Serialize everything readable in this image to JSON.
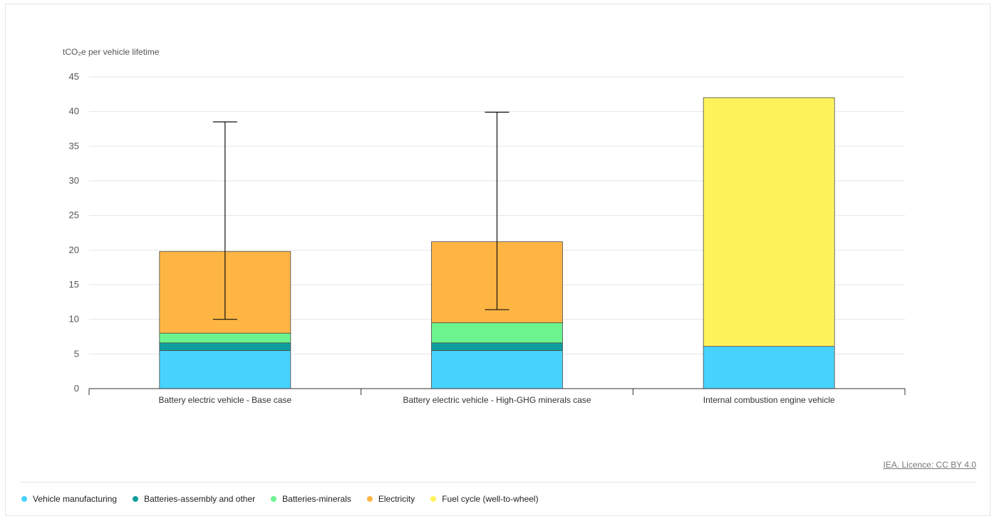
{
  "credit": "IEA. Licence: CC BY 4.0",
  "chart_data": {
    "type": "bar",
    "stacked": true,
    "ylabel": "tCO₂e per vehicle lifetime",
    "ylim": [
      0,
      45
    ],
    "yticks": [
      0,
      5,
      10,
      15,
      20,
      25,
      30,
      35,
      40,
      45
    ],
    "grid": true,
    "legend_position": "bottom-left",
    "categories": [
      "Battery electric vehicle - Base case",
      "Battery electric vehicle - High-GHG minerals case",
      "Internal combustion engine vehicle"
    ],
    "series": [
      {
        "name": "Vehicle manufacturing",
        "color": "#48D3FF",
        "values": [
          5.5,
          5.5,
          6.1
        ]
      },
      {
        "name": "Batteries-assembly and other",
        "color": "#0F9E9E",
        "values": [
          1.1,
          1.1,
          0
        ]
      },
      {
        "name": "Batteries-minerals",
        "color": "#6CF48F",
        "values": [
          1.4,
          2.9,
          0
        ]
      },
      {
        "name": "Electricity",
        "color": "#FEB543",
        "values": [
          11.8,
          11.7,
          0
        ]
      },
      {
        "name": "Fuel cycle (well-to-wheel)",
        "color": "#FFF35C",
        "values": [
          0,
          0,
          35.9
        ]
      }
    ],
    "error_bars": [
      {
        "category": "Battery electric vehicle - Base case",
        "low": 10.0,
        "high": 38.5
      },
      {
        "category": "Battery electric vehicle - High-GHG minerals case",
        "low": 11.4,
        "high": 39.9
      }
    ]
  }
}
